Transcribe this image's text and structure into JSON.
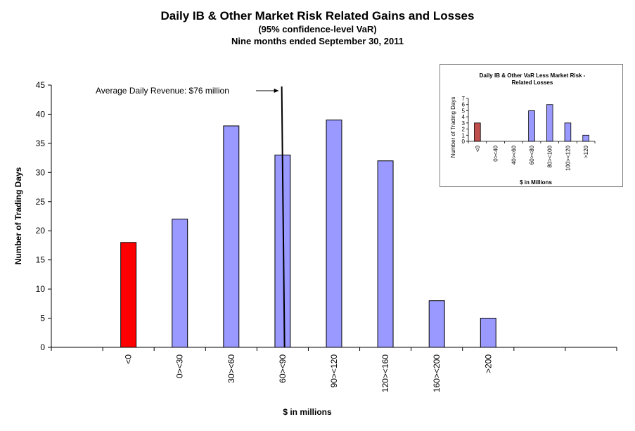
{
  "chart_data": [
    {
      "type": "bar",
      "title": "Daily IB & Other Market Risk Related Gains and Losses",
      "subtitle": "(95% confidence-level  VaR)",
      "subtitle2": "Nine months ended September 30, 2011",
      "xlabel": "$ in millions",
      "ylabel": "Number of Trading Days",
      "ylim": [
        0,
        45
      ],
      "yticks": [
        "0",
        "5",
        "10",
        "15",
        "20",
        "25",
        "30",
        "35",
        "40",
        "45"
      ],
      "categories": [
        "",
        "<0",
        "0><30",
        "30><60",
        "60><90",
        "90><120",
        "120><160",
        "160><200",
        ">200",
        "",
        ""
      ],
      "values": [
        0,
        18,
        22,
        38,
        33,
        39,
        32,
        8,
        5,
        0,
        0
      ],
      "bar_colors": [
        "#ff0000",
        "#ff0000",
        "#9999ff",
        "#9999ff",
        "#9999ff",
        "#9999ff",
        "#9999ff",
        "#9999ff",
        "#9999ff",
        "#9999ff",
        "#9999ff"
      ],
      "annotation": {
        "text": "Average Daily Revenue: $76 million",
        "x_value": 76
      },
      "grid": false
    },
    {
      "type": "bar",
      "title": "Daily IB & Other VaR Less Market Risk - Related Losses",
      "xlabel": "$ in Millions",
      "ylabel": "Number of Trading Days",
      "ylim": [
        0,
        7
      ],
      "yticks": [
        "0",
        "1",
        "2",
        "3",
        "4",
        "5",
        "6",
        "7"
      ],
      "categories": [
        "<0",
        "0><40",
        "40><60",
        "60><80",
        "80><100",
        "100><120",
        ">120"
      ],
      "values": [
        3,
        0,
        0,
        5,
        6,
        3,
        1
      ],
      "bar_colors": [
        "#c0504d",
        "#9999ff",
        "#9999ff",
        "#9999ff",
        "#9999ff",
        "#9999ff",
        "#9999ff"
      ],
      "placement": "top-right inset"
    }
  ]
}
